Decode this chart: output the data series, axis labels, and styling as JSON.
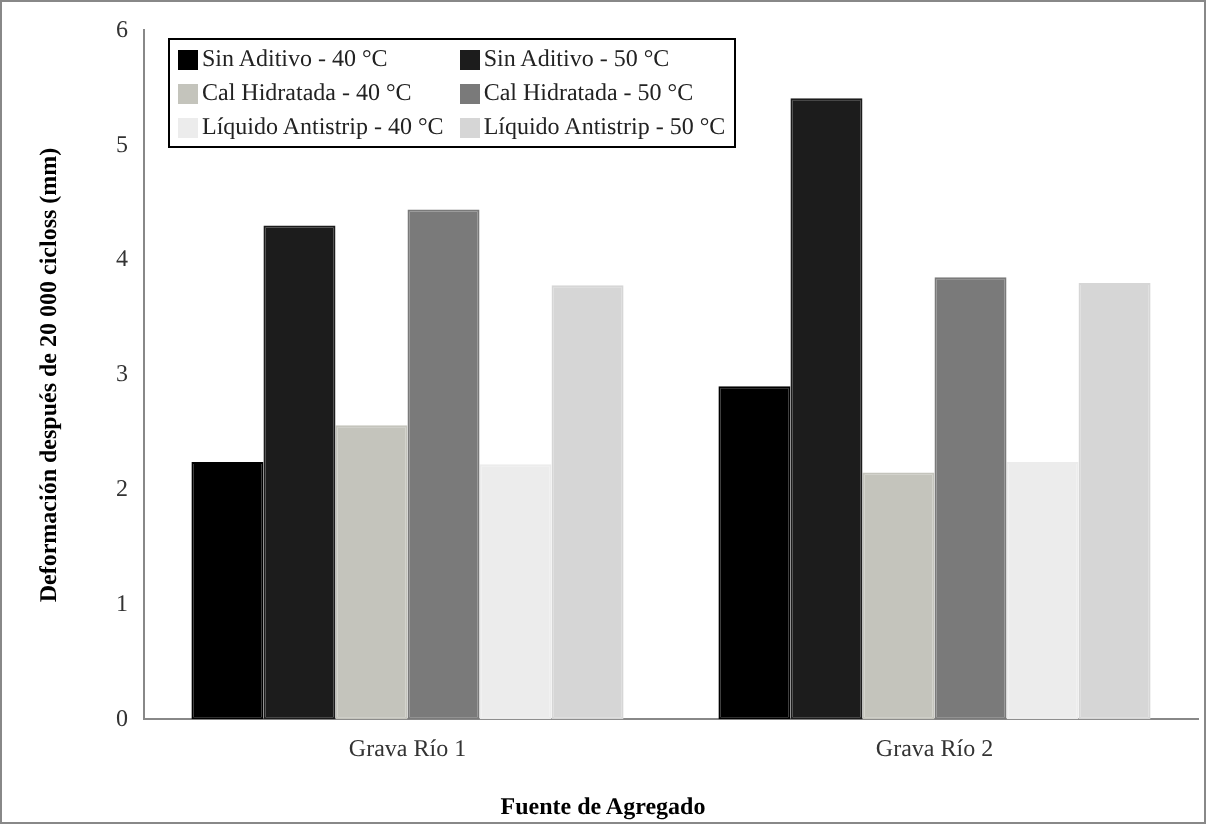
{
  "chart_data": {
    "type": "bar",
    "xlabel": "Fuente de Agregado",
    "ylabel": "Deformación después de 20 000 cicloss (mm)",
    "categories": [
      "Grava Río 1",
      "Grava Río 2"
    ],
    "series": [
      {
        "name": "Sin Aditivo - 40 °C",
        "color": "#000000",
        "values": [
          2.24,
          2.9
        ]
      },
      {
        "name": "Sin Aditivo - 50 °C",
        "color": "#1c1c1c",
        "values": [
          4.3,
          5.41
        ]
      },
      {
        "name": "Cal Hidratada - 40 °C",
        "color": "#c4c4bc",
        "values": [
          2.56,
          2.15
        ]
      },
      {
        "name": "Cal Hidratada - 50 °C",
        "color": "#7a7a7a",
        "values": [
          4.44,
          3.85
        ]
      },
      {
        "name": "Líquido Antistrip - 40 °C",
        "color": "#ececec",
        "values": [
          2.22,
          2.24
        ]
      },
      {
        "name": "Líquido Antistrip - 50 °C",
        "color": "#d6d6d6",
        "values": [
          3.78,
          3.8
        ]
      }
    ],
    "ylim": [
      0,
      6
    ],
    "yticks": [
      0,
      1,
      2,
      3,
      4,
      5,
      6
    ],
    "grid": false,
    "legend": "top left"
  }
}
